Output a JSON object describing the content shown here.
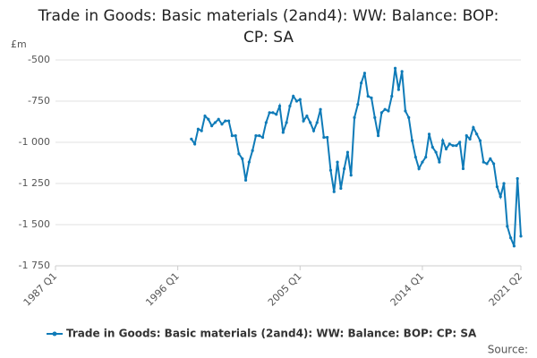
{
  "chart_data": {
    "type": "line",
    "title": "Trade in Goods: Basic materials (2and4): WW: Balance: BOP: CP: SA",
    "y_label": "£m",
    "source": "Source:",
    "categories": [
      "1987 Q1",
      null,
      null,
      null,
      null,
      null,
      null,
      null,
      null,
      null,
      null,
      null,
      null,
      null,
      null,
      null,
      null,
      null,
      null,
      null,
      null,
      null,
      null,
      null,
      null,
      null,
      null,
      null,
      null,
      null,
      null,
      null,
      null,
      null,
      null,
      null,
      "1996 Q1",
      null,
      null,
      null,
      null,
      null,
      null,
      null,
      null,
      null,
      null,
      null,
      null,
      null,
      null,
      null,
      null,
      null,
      null,
      null,
      null,
      null,
      null,
      null,
      null,
      null,
      null,
      null,
      null,
      null,
      null,
      null,
      null,
      null,
      null,
      null,
      "2005 Q1",
      null,
      null,
      null,
      null,
      null,
      null,
      null,
      null,
      null,
      null,
      null,
      null,
      null,
      null,
      null,
      null,
      null,
      null,
      null,
      null,
      null,
      null,
      null,
      null,
      null,
      null,
      null,
      null,
      null,
      null,
      null,
      null,
      null,
      null,
      null,
      "2014 Q1",
      null,
      null,
      null,
      null,
      null,
      null,
      null,
      null,
      null,
      null,
      null,
      null,
      null,
      null,
      null,
      null,
      null,
      null,
      null,
      null,
      null,
      null,
      null,
      null,
      null,
      null,
      null,
      null,
      "2021 Q2"
    ],
    "series": [
      {
        "name": "Trade in Goods: Basic materials (2and4): WW: Balance: BOP: CP: SA",
        "color": "#0f7bb8",
        "values": [
          null,
          null,
          null,
          null,
          null,
          null,
          null,
          null,
          null,
          null,
          null,
          null,
          null,
          null,
          null,
          null,
          null,
          null,
          null,
          null,
          null,
          null,
          null,
          null,
          null,
          null,
          null,
          null,
          null,
          null,
          null,
          null,
          null,
          null,
          null,
          null,
          null,
          null,
          null,
          null,
          -980,
          -1010,
          -920,
          -930,
          -840,
          -860,
          -900,
          -880,
          -860,
          -890,
          -870,
          -870,
          -960,
          -960,
          -1070,
          -1100,
          -1230,
          -1120,
          -1050,
          -960,
          -960,
          -970,
          -880,
          -820,
          -820,
          -830,
          -780,
          -940,
          -880,
          -780,
          -720,
          -750,
          -740,
          -870,
          -840,
          -880,
          -930,
          -880,
          -800,
          -970,
          -970,
          -1170,
          -1300,
          -1120,
          -1280,
          -1160,
          -1060,
          -1200,
          -850,
          -770,
          -640,
          -580,
          -720,
          -730,
          -850,
          -960,
          -820,
          -800,
          -810,
          -720,
          -550,
          -680,
          -570,
          -810,
          -850,
          -990,
          -1090,
          -1160,
          -1120,
          -1090,
          -950,
          -1030,
          -1060,
          -1120,
          -990,
          -1040,
          -1010,
          -1020,
          -1020,
          -1000,
          -1160,
          -960,
          -980,
          -910,
          -950,
          -990,
          -1120,
          -1130,
          -1100,
          -1130,
          -1270,
          -1330,
          -1250,
          -1510,
          -1580,
          -1630,
          -1220,
          -1570
        ]
      }
    ],
    "ylim": [
      -1750,
      -500
    ],
    "yticks": [
      {
        "value": -1750,
        "label": "-1 750"
      },
      {
        "value": -1500,
        "label": "-1 500"
      },
      {
        "value": -1250,
        "label": "-1 250"
      },
      {
        "value": -1000,
        "label": "-1 000"
      },
      -750,
      -500
    ],
    "grid": true
  }
}
